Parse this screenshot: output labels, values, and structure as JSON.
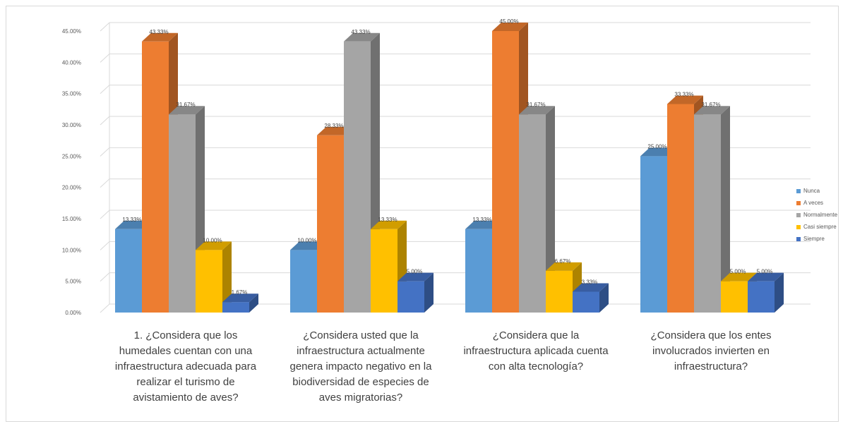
{
  "chart_data": {
    "type": "bar",
    "categories": [
      [
        "1. ¿Considera que los",
        "humedales cuentan con una",
        "infraestructura adecuada para",
        "realizar el turismo de",
        "avistamiento de aves?"
      ],
      [
        "¿Considera usted que la",
        "infraestructura actualmente",
        "genera impacto negativo en la",
        "biodiversidad de especies de",
        "aves migratorias?"
      ],
      [
        "¿Considera que la",
        "infraestructura aplicada cuenta",
        "con alta tecnología?"
      ],
      [
        "¿Considera que los entes",
        "involucrados invierten en",
        "infraestructura?"
      ]
    ],
    "series": [
      {
        "name": "Nunca",
        "color": "#5b9bd5",
        "values": [
          13.33,
          10.0,
          13.33,
          25.0
        ],
        "labels": [
          "13.33%",
          "10.00%",
          "13.33%",
          "25.00%"
        ]
      },
      {
        "name": "A veces",
        "color": "#ed7d31",
        "values": [
          43.33,
          28.33,
          45.0,
          33.33
        ],
        "labels": [
          "43.33%",
          "28.33%",
          "45.00%",
          "33.33%"
        ]
      },
      {
        "name": "Normalmente",
        "color": "#a5a5a5",
        "values": [
          31.67,
          43.33,
          31.67,
          31.67
        ],
        "labels": [
          "31.67%",
          "43.33%",
          "31.67%",
          "31.67%"
        ]
      },
      {
        "name": "Casi siempre",
        "color": "#ffc000",
        "values": [
          10.0,
          13.33,
          6.67,
          5.0
        ],
        "labels": [
          "10.00%",
          "13.33%",
          "6.67%",
          "5.00%"
        ]
      },
      {
        "name": "Siempre",
        "color": "#4472c4",
        "values": [
          1.67,
          5.0,
          3.33,
          5.0
        ],
        "labels": [
          "1.67%",
          "5.00%",
          "3.33%",
          "5.00%"
        ]
      }
    ],
    "y_ticks": [
      "0.00%",
      "5.00%",
      "10.00%",
      "15.00%",
      "20.00%",
      "25.00%",
      "30.00%",
      "35.00%",
      "40.00%",
      "45.00%"
    ],
    "ylim": [
      0,
      45
    ],
    "grid": true,
    "legend_position": "right"
  }
}
